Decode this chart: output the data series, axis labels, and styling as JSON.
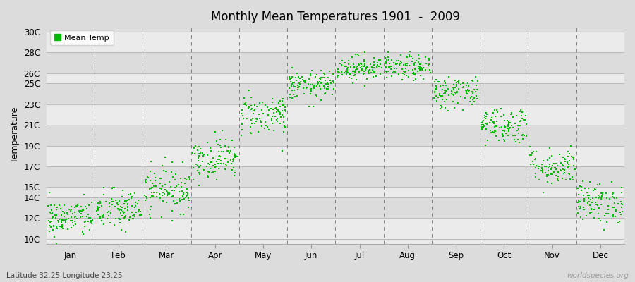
{
  "title": "Monthly Mean Temperatures 1901  -  2009",
  "ylabel": "Temperature",
  "watermark": "worldspecies.org",
  "footnote": "Latitude 32.25 Longitude 23.25",
  "legend_label": "Mean Temp",
  "dot_color": "#00BB00",
  "background_color": "#DCDCDC",
  "band_colors": [
    "#EBEBEB",
    "#DCDCDC"
  ],
  "yticks": [
    10,
    12,
    14,
    15,
    17,
    19,
    21,
    23,
    25,
    26,
    28,
    30
  ],
  "ytick_labels": [
    "10C",
    "12C",
    "14C",
    "15C",
    "17C",
    "19C",
    "21C",
    "23C",
    "25C",
    "26C",
    "28C",
    "30C"
  ],
  "ylim": [
    9.5,
    30.5
  ],
  "xlim": [
    0,
    12
  ],
  "months": [
    "Jan",
    "Feb",
    "Mar",
    "Apr",
    "May",
    "Jun",
    "Jul",
    "Aug",
    "Sep",
    "Oct",
    "Nov",
    "Dec"
  ],
  "monthly_means": [
    12.0,
    12.8,
    14.8,
    17.8,
    22.0,
    24.8,
    26.5,
    26.5,
    24.2,
    21.0,
    17.0,
    13.5
  ],
  "monthly_stds": [
    0.9,
    1.0,
    1.1,
    1.0,
    1.0,
    0.7,
    0.6,
    0.6,
    0.8,
    0.9,
    0.9,
    1.0
  ],
  "n_years": 109,
  "seed": 42,
  "dot_size": 4,
  "figsize": [
    9.0,
    4.0
  ],
  "dpi": 100
}
